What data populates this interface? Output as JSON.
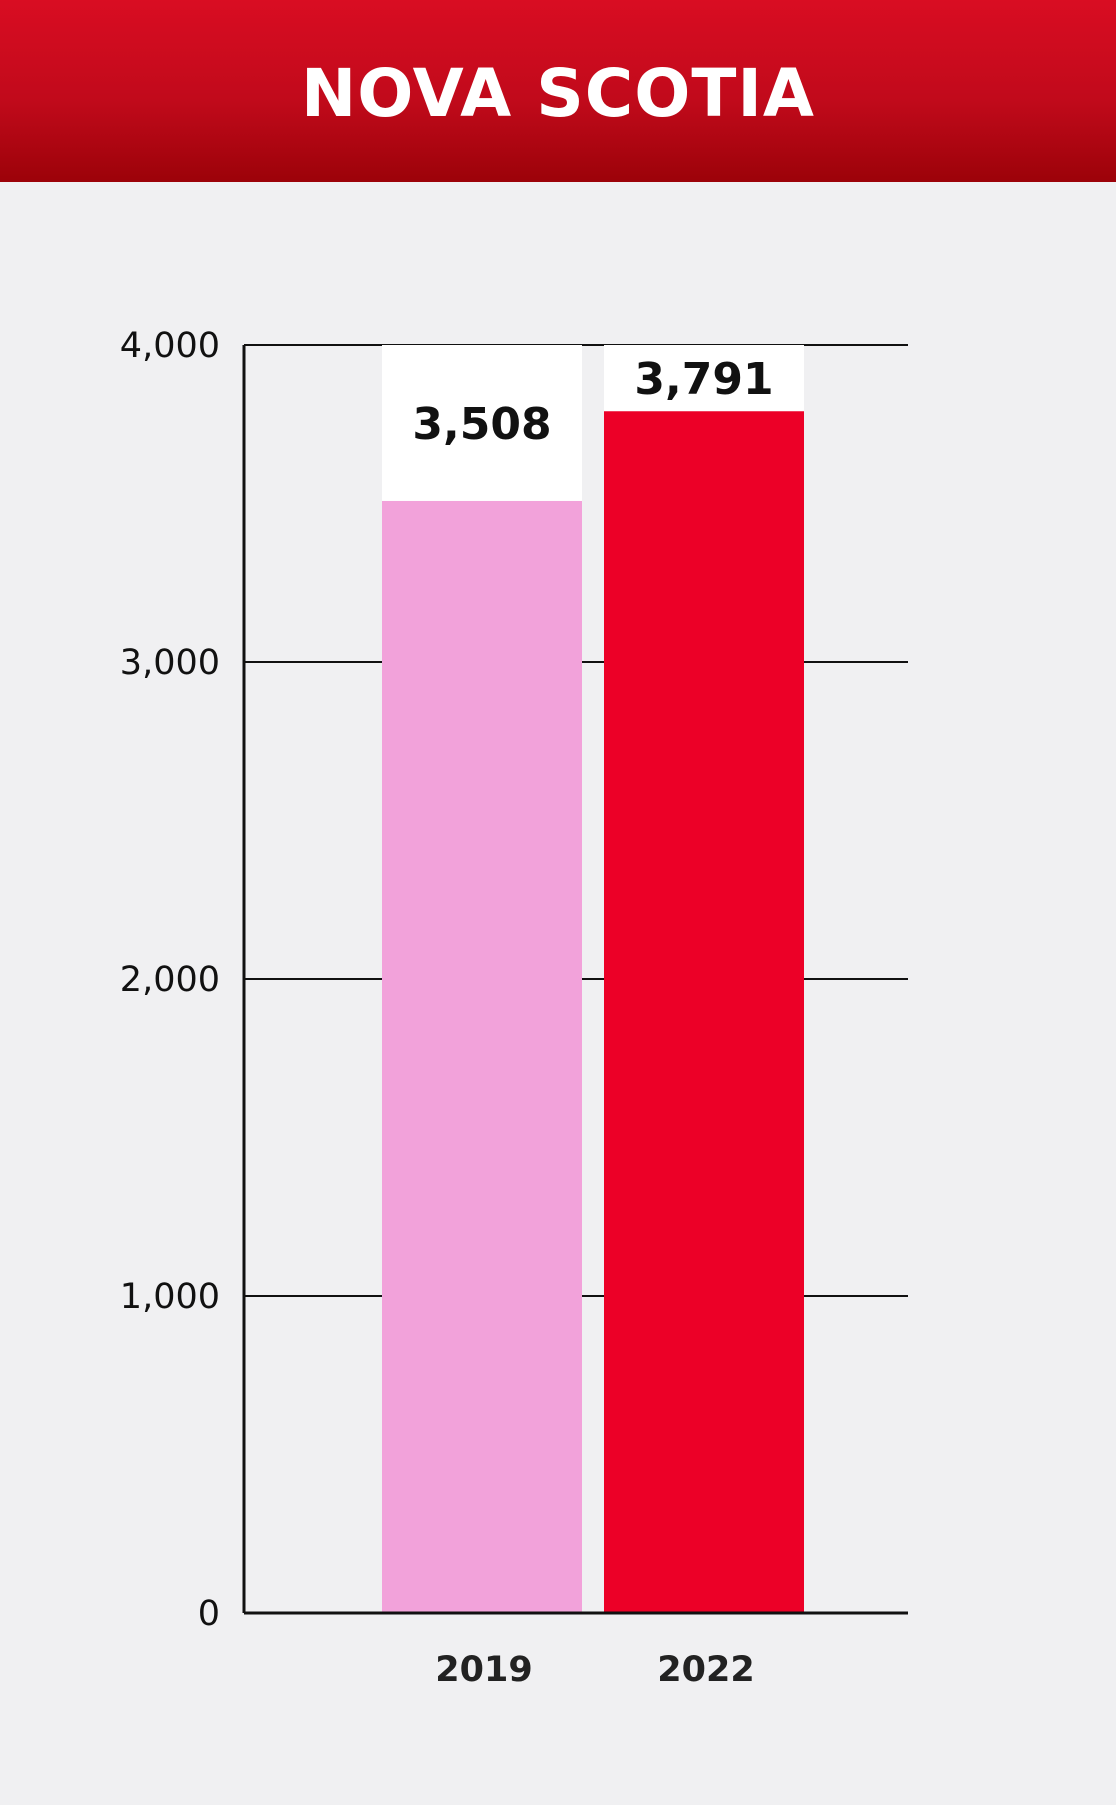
{
  "header": {
    "title": "NOVA SCOTIA"
  },
  "colors": {
    "header_top": "#d90d22",
    "header_bottom": "#9c0209",
    "background": "#f0f0f2",
    "bar_2019": "#f2a2da",
    "bar_2022": "#ec0027",
    "bar_track": "#ffffff"
  },
  "chart_data": {
    "type": "bar",
    "title": "NOVA SCOTIA",
    "categories": [
      "2019",
      "2022"
    ],
    "values": [
      3508,
      3791
    ],
    "value_labels": [
      "3,508",
      "3,791"
    ],
    "ylim": [
      0,
      4000
    ],
    "yticks": [
      0,
      1000,
      2000,
      3000,
      4000
    ],
    "ytick_labels": [
      "0",
      "1,000",
      "2,000",
      "3,000",
      "4,000"
    ],
    "grid": true,
    "xlabel": "",
    "ylabel": ""
  }
}
